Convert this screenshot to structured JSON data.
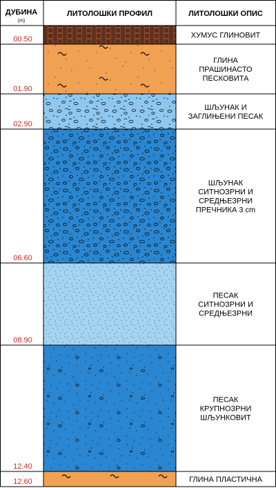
{
  "header": {
    "depth_title": "ДУБИНА",
    "depth_unit": "(m)",
    "profile_title": "ЛИТОЛОШКИ ПРОФИЛ",
    "description_title": "ЛИТОЛОШКИ ОПИС"
  },
  "layers": [
    {
      "depth_label": "00.50",
      "top": 0.0,
      "bottom": 0.5,
      "pattern": "humus",
      "description": [
        "ХУМУС ГЛИНОВИТ"
      ]
    },
    {
      "depth_label": "01.90",
      "top": 0.5,
      "bottom": 1.9,
      "pattern": "silty-clay",
      "description": [
        "ГЛИНА",
        "ПРАШИНАСТО",
        "ПЕСКОВИТА"
      ]
    },
    {
      "depth_label": "02.90",
      "top": 1.9,
      "bottom": 2.9,
      "pattern": "clayey-gravel",
      "description": [
        "ШЉУНАК И",
        "ЗАГЛИЊЕНИ ПЕСАК"
      ]
    },
    {
      "depth_label": "06.60",
      "top": 2.9,
      "bottom": 6.6,
      "pattern": "gravel",
      "description": [
        "ШЉУНАК",
        "СИТНОЗРНИ И",
        "СРЕДЊЕЗРНИ",
        "ПРЕЧНИКА 3 cm"
      ]
    },
    {
      "depth_label": "08.90",
      "top": 6.6,
      "bottom": 8.9,
      "pattern": "fine-sand",
      "description": [
        "ПЕСАК",
        "СИТНОЗРНИ И",
        "СРЕДЊЕЗРНИ"
      ]
    },
    {
      "depth_label": "12.40",
      "top": 8.9,
      "bottom": 12.4,
      "pattern": "coarse-sand",
      "description": [
        "ПЕСАК",
        "КРУПНОЗРНИ",
        "ШЉУНКОВИТ"
      ]
    },
    {
      "depth_label": "12.60",
      "top": 12.4,
      "bottom": 12.6,
      "pattern": "plastic-clay",
      "description": [
        "ГЛИНА ПЛАСТИЧНА"
      ]
    }
  ],
  "colors": {
    "grid": "#000000",
    "depth_text": "#d42a1f",
    "clay": "#f1a152",
    "humus": "#8b4a2d",
    "light_blue": "#8ec8f0",
    "blue": "#2a86d0",
    "sand_light": "#a4d4f2"
  }
}
